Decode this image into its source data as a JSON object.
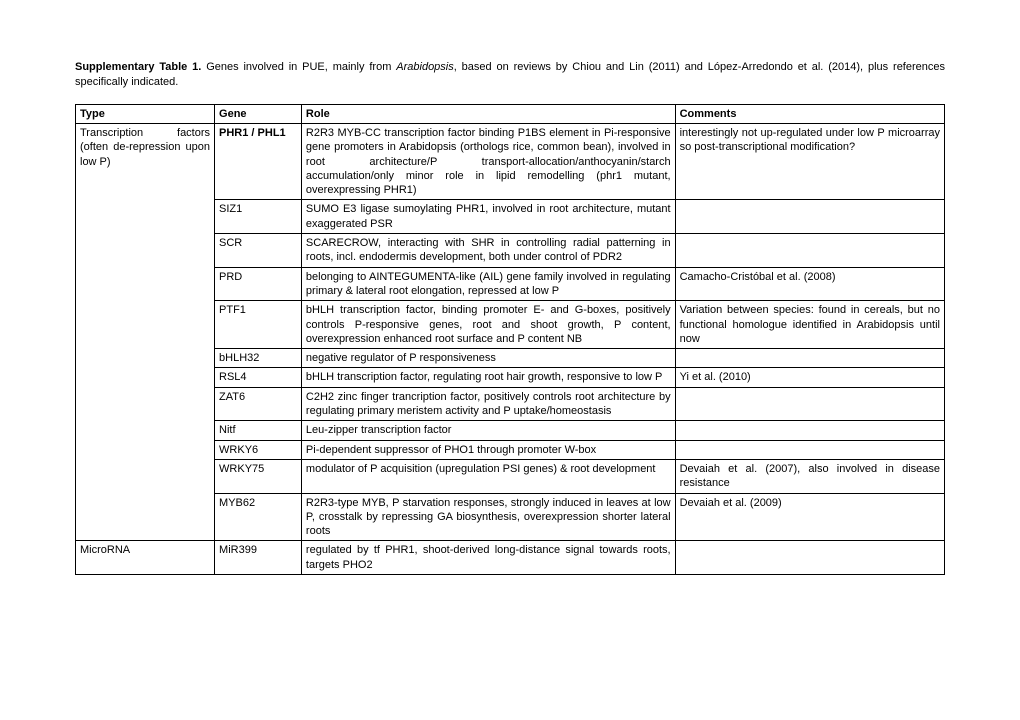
{
  "caption": {
    "title": "Supplementary Table 1.",
    "before_italic": " Genes involved in PUE, mainly from ",
    "italic": "Arabidopsis",
    "after_italic": ", based on reviews by Chiou and Lin (2011) and López-Arredondo et al. (2014), plus references specifically indicated."
  },
  "headers": {
    "type": "Type",
    "gene": "Gene",
    "role": "Role",
    "comments": "Comments"
  },
  "rows": [
    {
      "type": "Transcription factors (often de-repression upon low P)",
      "type_rowspan": 12,
      "gene": "PHR1 / PHL1",
      "gene_bold": true,
      "role": "R2R3 MYB-CC transcription factor binding P1BS element in Pi-responsive gene promoters in Arabidopsis (orthologs rice, common bean), involved in root architecture/P transport-allocation/anthocyanin/starch accumulation/only minor role in lipid remodelling (phr1 mutant, overexpressing PHR1)",
      "comments": "interestingly not up-regulated under low P microarray so post-transcriptional modification?"
    },
    {
      "gene": "SIZ1",
      "role": "SUMO E3 ligase sumoylating PHR1, involved in root architecture, mutant exaggerated PSR",
      "comments": ""
    },
    {
      "gene": "SCR",
      "role": "SCARECROW, interacting with SHR in controlling radial patterning in roots, incl. endodermis development, both under control of PDR2",
      "comments": ""
    },
    {
      "gene": "PRD",
      "role": "belonging to AINTEGUMENTA-like (AIL) gene family involved in regulating primary & lateral root elongation, repressed at low P",
      "comments": "Camacho-Cristóbal et al. (2008)"
    },
    {
      "gene": "PTF1",
      "role": "bHLH transcription factor, binding promoter E- and G-boxes, positively controls P-responsive genes, root and shoot growth, P content, overexpression enhanced root surface and P content NB",
      "comments": "Variation between species: found in cereals, but no functional homologue identified in Arabidopsis until now"
    },
    {
      "gene": "bHLH32",
      "role": "negative regulator of P responsiveness",
      "comments": ""
    },
    {
      "gene": "RSL4",
      "role": "bHLH transcription factor, regulating root hair growth, responsive to low P",
      "comments": "Yi et al. (2010)"
    },
    {
      "gene": "ZAT6",
      "role": "C2H2 zinc finger trancription factor, positively controls root architecture by regulating primary meristem activity and P uptake/homeostasis",
      "comments": ""
    },
    {
      "gene": "Nitf",
      "role": "Leu-zipper transcription factor",
      "comments": ""
    },
    {
      "gene": "WRKY6",
      "role": "Pi-dependent suppressor of PHO1 through promoter W-box",
      "comments": ""
    },
    {
      "gene": "WRKY75",
      "role": "modulator of P acquisition (upregulation PSI genes) & root development",
      "comments": "Devaiah et al. (2007), also involved in disease resistance"
    },
    {
      "gene": "MYB62",
      "role": "R2R3-type MYB, P starvation responses, strongly induced in leaves at low P, crosstalk by repressing GA biosynthesis, overexpression shorter lateral roots",
      "comments": "Devaiah et al. (2009)"
    },
    {
      "type": "MicroRNA",
      "type_rowspan": 1,
      "gene": "MiR399",
      "role": "regulated by tf PHR1, shoot-derived long-distance signal towards roots, targets PHO2",
      "comments": ""
    }
  ]
}
